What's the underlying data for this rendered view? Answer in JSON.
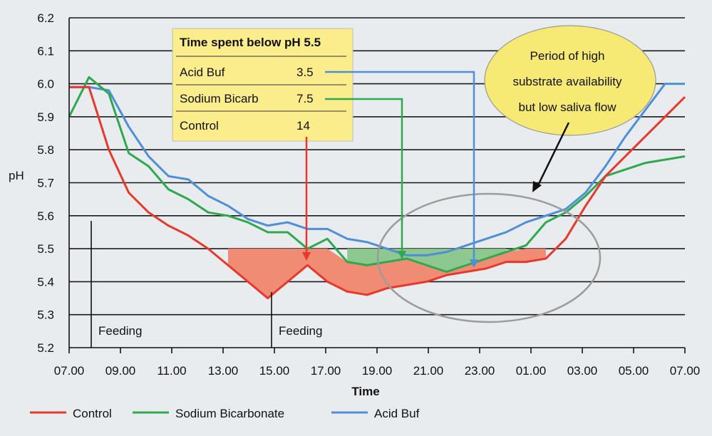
{
  "chart_data": {
    "type": "line",
    "xlabel": "Time",
    "ylabel": "pH",
    "ylim": [
      5.2,
      6.2
    ],
    "yticks": [
      "5.2",
      "5.3",
      "5.4",
      "5.5",
      "5.6",
      "5.7",
      "5.8",
      "5.9",
      "6.0",
      "6.1",
      "6.2"
    ],
    "xticks": [
      "07.00",
      "09.00",
      "11.00",
      "13.00",
      "15.00",
      "17.00",
      "19.00",
      "21.00",
      "23.00",
      "01.00",
      "03.00",
      "05.00",
      "07.00"
    ],
    "threshold": 5.5,
    "series": [
      {
        "name": "Control",
        "color": "#e8382c",
        "points": [
          [
            0,
            5.99
          ],
          [
            1,
            5.99
          ],
          [
            2,
            5.8
          ],
          [
            3,
            5.67
          ],
          [
            4,
            5.61
          ],
          [
            5,
            5.57
          ],
          [
            6,
            5.54
          ],
          [
            7,
            5.5
          ],
          [
            8,
            5.45
          ],
          [
            9,
            5.4
          ],
          [
            10,
            5.35
          ],
          [
            11,
            5.4
          ],
          [
            12,
            5.45
          ],
          [
            13,
            5.4
          ],
          [
            14,
            5.37
          ],
          [
            15,
            5.36
          ],
          [
            16,
            5.38
          ],
          [
            17,
            5.39
          ],
          [
            18,
            5.4
          ],
          [
            19,
            5.42
          ],
          [
            20,
            5.43
          ],
          [
            21,
            5.44
          ],
          [
            22,
            5.46
          ],
          [
            23,
            5.46
          ],
          [
            24,
            5.47
          ],
          [
            25,
            5.53
          ],
          [
            26,
            5.63
          ],
          [
            27,
            5.72
          ],
          [
            28,
            5.78
          ],
          [
            29,
            5.84
          ],
          [
            30,
            5.9
          ],
          [
            31,
            5.96
          ]
        ]
      },
      {
        "name": "Sodium Bicarbonate",
        "color": "#2fa84f",
        "points": [
          [
            0,
            5.9
          ],
          [
            1,
            6.02
          ],
          [
            2,
            5.97
          ],
          [
            3,
            5.79
          ],
          [
            4,
            5.75
          ],
          [
            5,
            5.68
          ],
          [
            6,
            5.65
          ],
          [
            7,
            5.61
          ],
          [
            8,
            5.6
          ],
          [
            9,
            5.58
          ],
          [
            10,
            5.55
          ],
          [
            11,
            5.55
          ],
          [
            12,
            5.5
          ],
          [
            13,
            5.53
          ],
          [
            14,
            5.46
          ],
          [
            15,
            5.45
          ],
          [
            16,
            5.46
          ],
          [
            17,
            5.47
          ],
          [
            18,
            5.45
          ],
          [
            19,
            5.43
          ],
          [
            20,
            5.45
          ],
          [
            21,
            5.47
          ],
          [
            22,
            5.49
          ],
          [
            23,
            5.51
          ],
          [
            24,
            5.58
          ],
          [
            25,
            5.61
          ],
          [
            26,
            5.66
          ],
          [
            27,
            5.72
          ],
          [
            28,
            5.74
          ],
          [
            29,
            5.76
          ],
          [
            30,
            5.77
          ],
          [
            31,
            5.78
          ]
        ]
      },
      {
        "name": "Acid Buf",
        "color": "#4f8fd8",
        "points": [
          [
            0,
            5.99
          ],
          [
            1,
            5.99
          ],
          [
            2,
            5.98
          ],
          [
            3,
            5.87
          ],
          [
            4,
            5.78
          ],
          [
            5,
            5.72
          ],
          [
            6,
            5.71
          ],
          [
            7,
            5.66
          ],
          [
            8,
            5.63
          ],
          [
            9,
            5.59
          ],
          [
            10,
            5.57
          ],
          [
            11,
            5.58
          ],
          [
            12,
            5.56
          ],
          [
            13,
            5.56
          ],
          [
            14,
            5.53
          ],
          [
            15,
            5.52
          ],
          [
            16,
            5.5
          ],
          [
            17,
            5.48
          ],
          [
            18,
            5.48
          ],
          [
            19,
            5.49
          ],
          [
            20,
            5.51
          ],
          [
            21,
            5.53
          ],
          [
            22,
            5.55
          ],
          [
            23,
            5.58
          ],
          [
            24,
            5.6
          ],
          [
            25,
            5.62
          ],
          [
            26,
            5.67
          ],
          [
            27,
            5.75
          ],
          [
            28,
            5.84
          ],
          [
            29,
            5.92
          ],
          [
            30,
            6.0
          ],
          [
            31,
            6.0
          ]
        ]
      }
    ],
    "feeding_markers": [
      {
        "label": "Feeding",
        "x": 1.1
      },
      {
        "label": "Feeding",
        "x": 10.4
      }
    ],
    "legend": [
      "Control",
      "Sodium Bicarbonate",
      "Acid Buf"
    ]
  },
  "callout_table": {
    "title": "Time spent below pH 5.5",
    "rows": [
      {
        "name": "Acid Buf",
        "value": "3.5",
        "color": "#4f8fd8"
      },
      {
        "name": "Sodium Bicarb",
        "value": "7.5",
        "color": "#2fa84f"
      },
      {
        "name": "Control",
        "value": "14",
        "color": "#e8382c"
      }
    ]
  },
  "annotation": {
    "line1": "Period of high",
    "line2": "substrate availability",
    "line3": "but low saliva flow"
  },
  "colors": {
    "control_fill": "#f08c74",
    "bicarb_fill": "#8cc890",
    "callout_bg": "#fbec8c",
    "ellipse_bg": "#f6ea74"
  }
}
